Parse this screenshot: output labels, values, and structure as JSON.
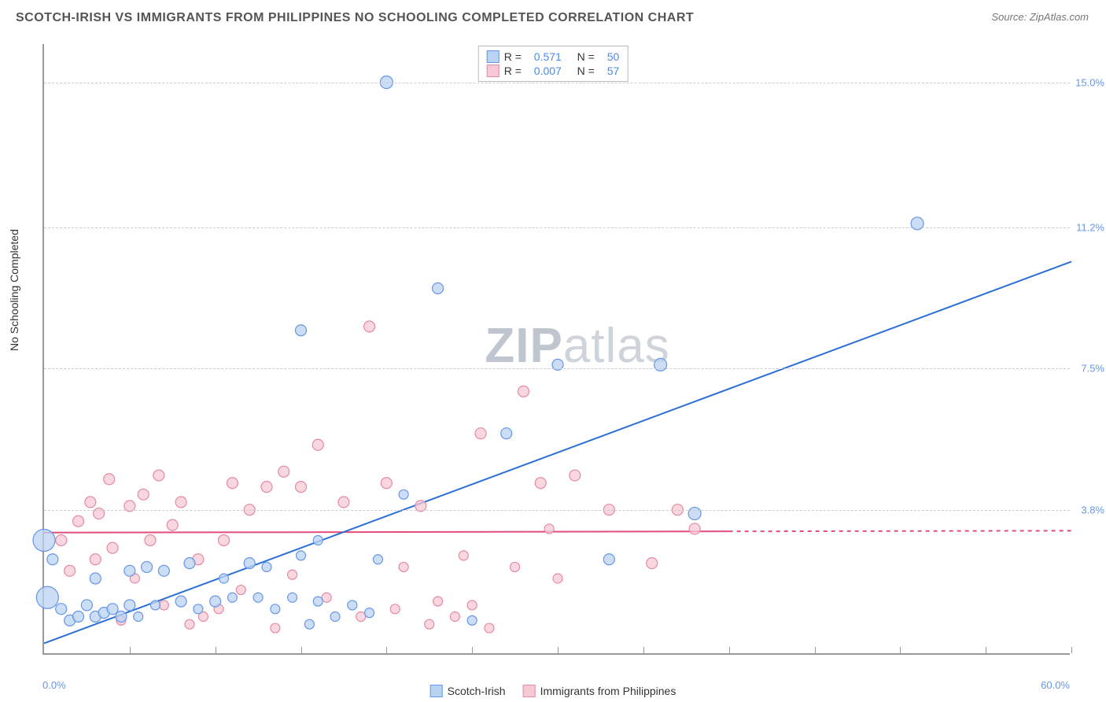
{
  "title": "SCOTCH-IRISH VS IMMIGRANTS FROM PHILIPPINES NO SCHOOLING COMPLETED CORRELATION CHART",
  "source": "Source: ZipAtlas.com",
  "y_axis_label": "No Schooling Completed",
  "watermark": {
    "bold": "ZIP",
    "light": "atlas"
  },
  "chart": {
    "type": "scatter",
    "xlim": [
      0,
      60
    ],
    "ylim": [
      0,
      16
    ],
    "x_ticks": [
      5,
      10,
      15,
      20,
      25,
      30,
      35,
      40,
      45,
      50,
      55,
      60
    ],
    "x_lab_min": "0.0%",
    "x_lab_max": "60.0%",
    "y_gridlines": [
      3.8,
      7.5,
      11.2,
      15.0
    ],
    "y_labels": [
      "3.8%",
      "7.5%",
      "11.2%",
      "15.0%"
    ],
    "background_color": "#ffffff",
    "grid_color": "#cccccc",
    "axis_color": "#999999",
    "tick_label_color": "#6796e6"
  },
  "series": {
    "blue": {
      "name": "Scotch-Irish",
      "fill": "#b9d3f3",
      "stroke": "#6796e6",
      "R": "0.571",
      "N": "50",
      "trend": {
        "x1": 0,
        "y1": 0.3,
        "x2": 60,
        "y2": 10.3,
        "color": "#2b6fd6",
        "width": 2,
        "solid_until_x": 60
      },
      "points": [
        {
          "x": 0.0,
          "y": 3.0,
          "r": 14
        },
        {
          "x": 0.2,
          "y": 1.5,
          "r": 14
        },
        {
          "x": 0.5,
          "y": 2.5,
          "r": 7
        },
        {
          "x": 1.0,
          "y": 1.2,
          "r": 7
        },
        {
          "x": 1.5,
          "y": 0.9,
          "r": 7
        },
        {
          "x": 2.0,
          "y": 1.0,
          "r": 7
        },
        {
          "x": 2.5,
          "y": 1.3,
          "r": 7
        },
        {
          "x": 3.0,
          "y": 1.0,
          "r": 7
        },
        {
          "x": 3.0,
          "y": 2.0,
          "r": 7
        },
        {
          "x": 3.5,
          "y": 1.1,
          "r": 7
        },
        {
          "x": 4.0,
          "y": 1.2,
          "r": 7
        },
        {
          "x": 4.5,
          "y": 1.0,
          "r": 7
        },
        {
          "x": 5.0,
          "y": 1.3,
          "r": 7
        },
        {
          "x": 5.0,
          "y": 2.2,
          "r": 7
        },
        {
          "x": 5.5,
          "y": 1.0,
          "r": 6
        },
        {
          "x": 6.0,
          "y": 2.3,
          "r": 7
        },
        {
          "x": 6.5,
          "y": 1.3,
          "r": 6
        },
        {
          "x": 7.0,
          "y": 2.2,
          "r": 7
        },
        {
          "x": 8.0,
          "y": 1.4,
          "r": 7
        },
        {
          "x": 8.5,
          "y": 2.4,
          "r": 7
        },
        {
          "x": 9.0,
          "y": 1.2,
          "r": 6
        },
        {
          "x": 10.0,
          "y": 1.4,
          "r": 7
        },
        {
          "x": 10.5,
          "y": 2.0,
          "r": 6
        },
        {
          "x": 11.0,
          "y": 1.5,
          "r": 6
        },
        {
          "x": 12.0,
          "y": 2.4,
          "r": 7
        },
        {
          "x": 12.5,
          "y": 1.5,
          "r": 6
        },
        {
          "x": 13.0,
          "y": 2.3,
          "r": 6
        },
        {
          "x": 13.5,
          "y": 1.2,
          "r": 6
        },
        {
          "x": 14.5,
          "y": 1.5,
          "r": 6
        },
        {
          "x": 15.0,
          "y": 8.5,
          "r": 7
        },
        {
          "x": 15.0,
          "y": 2.6,
          "r": 6
        },
        {
          "x": 15.5,
          "y": 0.8,
          "r": 6
        },
        {
          "x": 16.0,
          "y": 1.4,
          "r": 6
        },
        {
          "x": 16.0,
          "y": 3.0,
          "r": 6
        },
        {
          "x": 17.0,
          "y": 1.0,
          "r": 6
        },
        {
          "x": 18.0,
          "y": 1.3,
          "r": 6
        },
        {
          "x": 19.0,
          "y": 1.1,
          "r": 6
        },
        {
          "x": 19.5,
          "y": 2.5,
          "r": 6
        },
        {
          "x": 20.0,
          "y": 15.0,
          "r": 8
        },
        {
          "x": 21.0,
          "y": 4.2,
          "r": 6
        },
        {
          "x": 23.0,
          "y": 9.6,
          "r": 7
        },
        {
          "x": 25.0,
          "y": 0.9,
          "r": 6
        },
        {
          "x": 27.0,
          "y": 5.8,
          "r": 7
        },
        {
          "x": 30.0,
          "y": 7.6,
          "r": 7
        },
        {
          "x": 33.0,
          "y": 2.5,
          "r": 7
        },
        {
          "x": 36.0,
          "y": 7.6,
          "r": 8
        },
        {
          "x": 38.0,
          "y": 3.7,
          "r": 8
        },
        {
          "x": 51.0,
          "y": 11.3,
          "r": 8
        }
      ]
    },
    "pink": {
      "name": "Immigrants from Philippines",
      "fill": "#f6c9d4",
      "stroke": "#e48aa4",
      "R": "0.007",
      "N": "57",
      "trend": {
        "x1": 0,
        "y1": 3.2,
        "x2": 60,
        "y2": 3.25,
        "color": "#e34d7a",
        "width": 2,
        "solid_until_x": 40
      },
      "points": [
        {
          "x": 1.0,
          "y": 3.0,
          "r": 7
        },
        {
          "x": 1.5,
          "y": 2.2,
          "r": 7
        },
        {
          "x": 2.0,
          "y": 3.5,
          "r": 7
        },
        {
          "x": 2.7,
          "y": 4.0,
          "r": 7
        },
        {
          "x": 3.0,
          "y": 2.5,
          "r": 7
        },
        {
          "x": 3.2,
          "y": 3.7,
          "r": 7
        },
        {
          "x": 3.8,
          "y": 4.6,
          "r": 7
        },
        {
          "x": 4.0,
          "y": 2.8,
          "r": 7
        },
        {
          "x": 4.5,
          "y": 0.9,
          "r": 6
        },
        {
          "x": 5.0,
          "y": 3.9,
          "r": 7
        },
        {
          "x": 5.3,
          "y": 2.0,
          "r": 6
        },
        {
          "x": 5.8,
          "y": 4.2,
          "r": 7
        },
        {
          "x": 6.2,
          "y": 3.0,
          "r": 7
        },
        {
          "x": 6.7,
          "y": 4.7,
          "r": 7
        },
        {
          "x": 7.0,
          "y": 1.3,
          "r": 6
        },
        {
          "x": 7.5,
          "y": 3.4,
          "r": 7
        },
        {
          "x": 8.0,
          "y": 4.0,
          "r": 7
        },
        {
          "x": 8.5,
          "y": 0.8,
          "r": 6
        },
        {
          "x": 9.0,
          "y": 2.5,
          "r": 7
        },
        {
          "x": 9.3,
          "y": 1.0,
          "r": 6
        },
        {
          "x": 10.2,
          "y": 1.2,
          "r": 6
        },
        {
          "x": 10.5,
          "y": 3.0,
          "r": 7
        },
        {
          "x": 11.0,
          "y": 4.5,
          "r": 7
        },
        {
          "x": 11.5,
          "y": 1.7,
          "r": 6
        },
        {
          "x": 12.0,
          "y": 3.8,
          "r": 7
        },
        {
          "x": 13.0,
          "y": 4.4,
          "r": 7
        },
        {
          "x": 13.5,
          "y": 0.7,
          "r": 6
        },
        {
          "x": 14.0,
          "y": 4.8,
          "r": 7
        },
        {
          "x": 14.5,
          "y": 2.1,
          "r": 6
        },
        {
          "x": 15.0,
          "y": 4.4,
          "r": 7
        },
        {
          "x": 16.0,
          "y": 5.5,
          "r": 7
        },
        {
          "x": 16.5,
          "y": 1.5,
          "r": 6
        },
        {
          "x": 17.5,
          "y": 4.0,
          "r": 7
        },
        {
          "x": 18.5,
          "y": 1.0,
          "r": 6
        },
        {
          "x": 19.0,
          "y": 8.6,
          "r": 7
        },
        {
          "x": 20.0,
          "y": 4.5,
          "r": 7
        },
        {
          "x": 20.5,
          "y": 1.2,
          "r": 6
        },
        {
          "x": 21.0,
          "y": 2.3,
          "r": 6
        },
        {
          "x": 22.0,
          "y": 3.9,
          "r": 7
        },
        {
          "x": 22.5,
          "y": 0.8,
          "r": 6
        },
        {
          "x": 23.0,
          "y": 1.4,
          "r": 6
        },
        {
          "x": 24.0,
          "y": 1.0,
          "r": 6
        },
        {
          "x": 24.5,
          "y": 2.6,
          "r": 6
        },
        {
          "x": 25.0,
          "y": 1.3,
          "r": 6
        },
        {
          "x": 25.5,
          "y": 5.8,
          "r": 7
        },
        {
          "x": 26.0,
          "y": 0.7,
          "r": 6
        },
        {
          "x": 27.5,
          "y": 2.3,
          "r": 6
        },
        {
          "x": 28.0,
          "y": 6.9,
          "r": 7
        },
        {
          "x": 29.0,
          "y": 4.5,
          "r": 7
        },
        {
          "x": 29.5,
          "y": 3.3,
          "r": 6
        },
        {
          "x": 30.0,
          "y": 2.0,
          "r": 6
        },
        {
          "x": 31.0,
          "y": 4.7,
          "r": 7
        },
        {
          "x": 33.0,
          "y": 3.8,
          "r": 7
        },
        {
          "x": 35.5,
          "y": 2.4,
          "r": 7
        },
        {
          "x": 37.0,
          "y": 3.8,
          "r": 7
        },
        {
          "x": 38.0,
          "y": 3.3,
          "r": 7
        }
      ]
    }
  },
  "legend_rn": {
    "R_label": "R =",
    "N_label": "N ="
  }
}
